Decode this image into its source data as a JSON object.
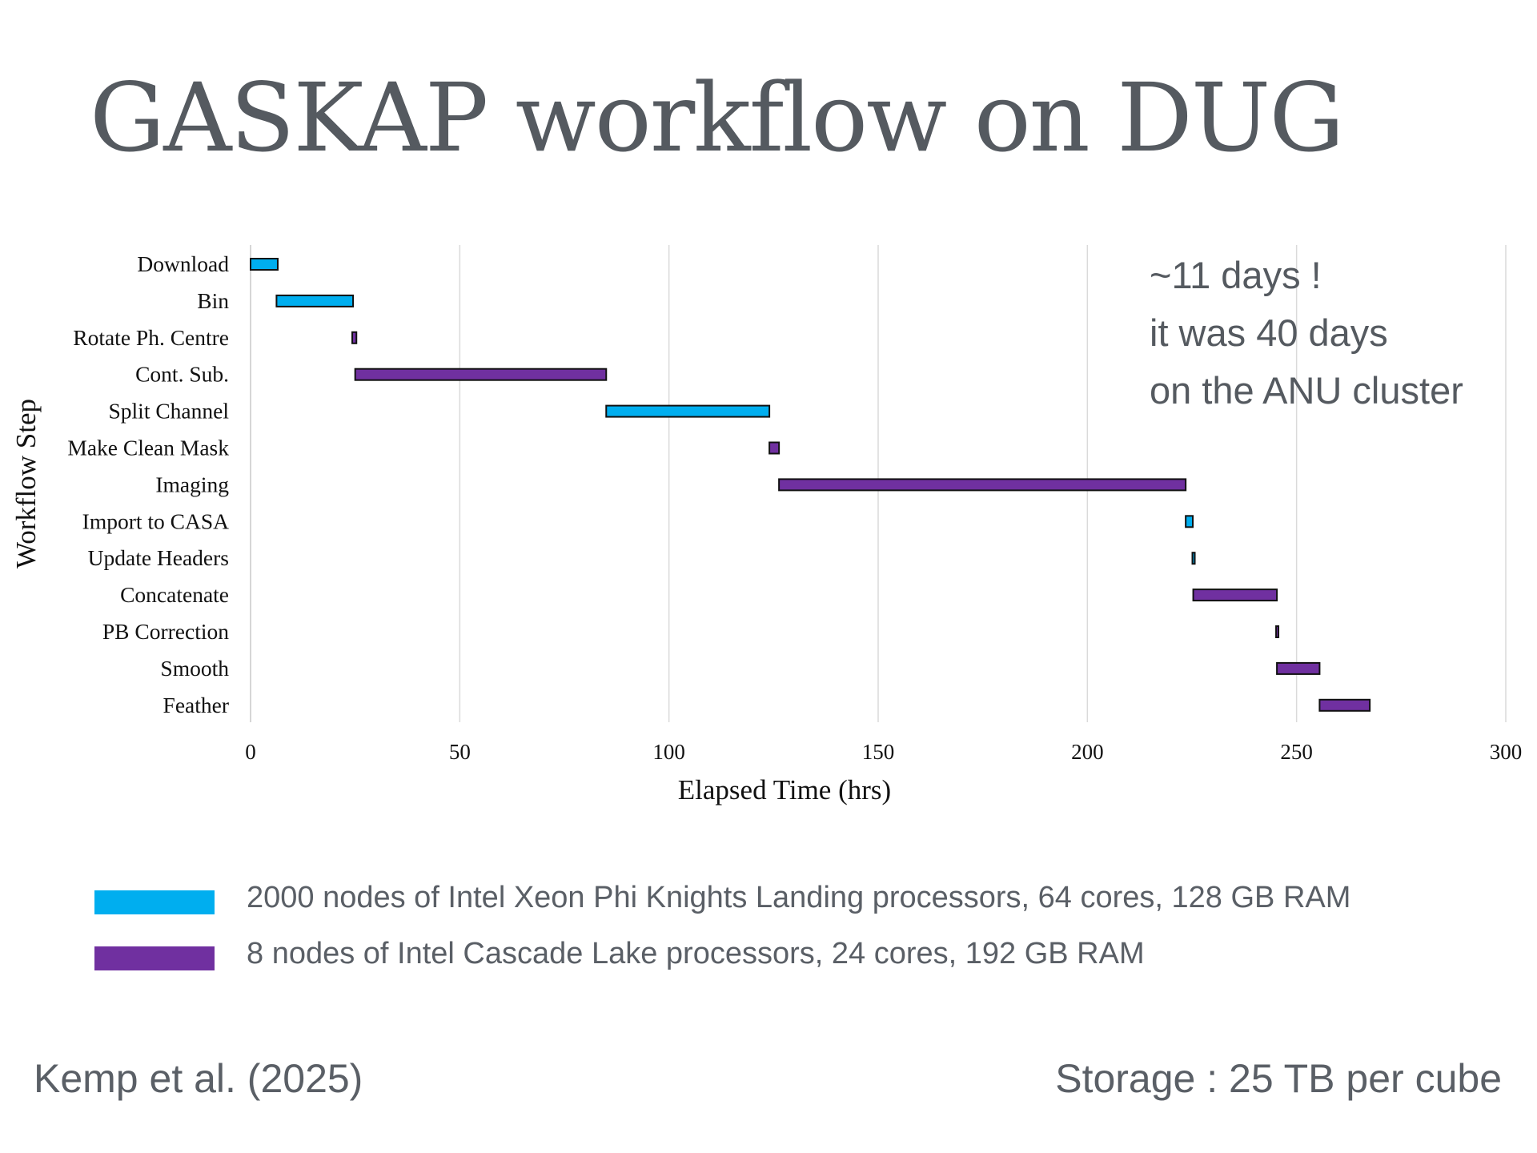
{
  "slide": {
    "title": "GASKAP workflow on DUG",
    "callout_lines": [
      "~11 days !",
      "it was 40 days",
      "on the ANU cluster"
    ],
    "citation": "Kemp et al. (2025)",
    "storage_note": "Storage : 25 TB per cube"
  },
  "colors": {
    "knl": "#00aeef",
    "cascade": "#7030a0"
  },
  "legend": [
    {
      "key": "knl",
      "label": "2000 nodes of Intel Xeon Phi Knights Landing processors, 64 cores, 128 GB RAM"
    },
    {
      "key": "cascade",
      "label": "8 nodes of Intel Cascade Lake processors, 24 cores, 192 GB RAM"
    }
  ],
  "chart_data": {
    "type": "bar",
    "orientation": "horizontal-gantt",
    "xlabel": "Elapsed Time (hrs)",
    "ylabel": "Workflow Step",
    "xlim": [
      0,
      300
    ],
    "xticks": [
      0,
      50,
      100,
      150,
      200,
      250,
      300
    ],
    "grid": "vertical",
    "tasks": [
      {
        "name": "Download",
        "start": 0,
        "end": 6.5,
        "resource": "knl"
      },
      {
        "name": "Bin",
        "start": 6.2,
        "end": 24.5,
        "resource": "knl"
      },
      {
        "name": "Rotate Ph. Centre",
        "start": 24.3,
        "end": 25.3,
        "resource": "cascade"
      },
      {
        "name": "Cont. Sub.",
        "start": 25,
        "end": 85,
        "resource": "cascade"
      },
      {
        "name": "Split Channel",
        "start": 85,
        "end": 124,
        "resource": "knl"
      },
      {
        "name": "Make Clean Mask",
        "start": 124,
        "end": 126.3,
        "resource": "cascade"
      },
      {
        "name": "Imaging",
        "start": 126.3,
        "end": 223.5,
        "resource": "cascade"
      },
      {
        "name": "Import to CASA",
        "start": 223.5,
        "end": 225.2,
        "resource": "knl"
      },
      {
        "name": "Update Headers",
        "start": 225.1,
        "end": 225.6,
        "resource": "knl"
      },
      {
        "name": "Concatenate",
        "start": 225.3,
        "end": 245.3,
        "resource": "cascade"
      },
      {
        "name": "PB Correction",
        "start": 245.1,
        "end": 245.6,
        "resource": "cascade"
      },
      {
        "name": "Smooth",
        "start": 245.3,
        "end": 255.5,
        "resource": "cascade"
      },
      {
        "name": "Feather",
        "start": 255.5,
        "end": 267.5,
        "resource": "cascade"
      }
    ]
  }
}
